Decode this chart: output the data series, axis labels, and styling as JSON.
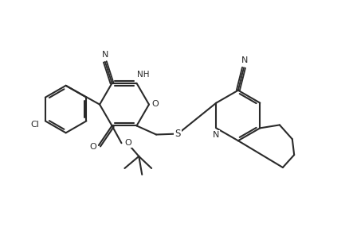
{
  "bg_color": "#ffffff",
  "line_color": "#2a2a2a",
  "line_width": 1.5,
  "fig_width": 4.39,
  "fig_height": 2.91,
  "xlim": [
    0,
    11
  ],
  "ylim": [
    0,
    7.3
  ]
}
